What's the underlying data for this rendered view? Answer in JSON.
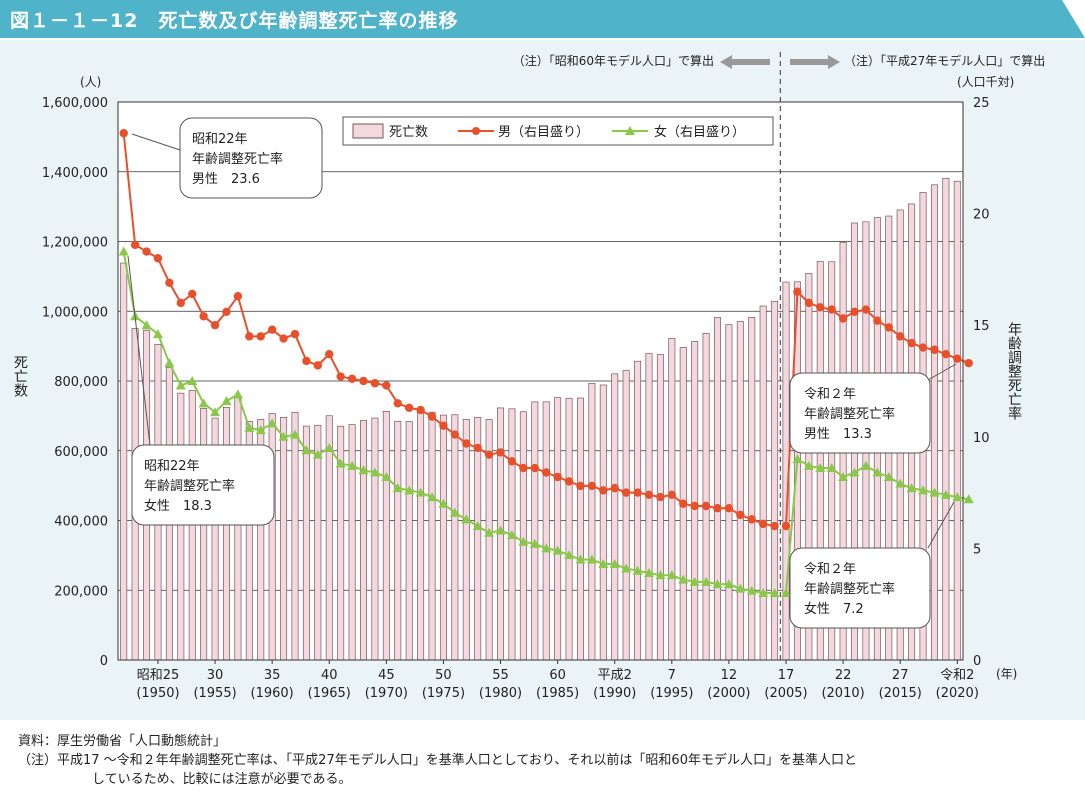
{
  "title": "図１－１－12　死亡数及び年齢調整死亡率の推移",
  "notes": {
    "source": "資料：厚生労働省「人口動態統計」",
    "note_line1": "（注）平成17 ～令和２年年齢調整死亡率は、「平成27年モデル人口」を基準人口としており、それ以前は「昭和60年モデル人口」を基準人口と",
    "note_line2": "しているため、比較には注意が必要である。"
  },
  "colors": {
    "title_bg": "#4fb3c9",
    "bar_fill": "#f3d9de",
    "bar_stroke": "#7a5560",
    "male": "#e8502b",
    "female": "#8ac84a"
  },
  "chart_data": {
    "type": "bar+line",
    "x": [
      1947,
      1948,
      1949,
      1950,
      1951,
      1952,
      1953,
      1954,
      1955,
      1956,
      1957,
      1958,
      1959,
      1960,
      1961,
      1962,
      1963,
      1964,
      1965,
      1966,
      1967,
      1968,
      1969,
      1970,
      1971,
      1972,
      1973,
      1974,
      1975,
      1976,
      1977,
      1978,
      1979,
      1980,
      1981,
      1982,
      1983,
      1984,
      1985,
      1986,
      1987,
      1988,
      1989,
      1990,
      1991,
      1992,
      1993,
      1994,
      1995,
      1996,
      1997,
      1998,
      1999,
      2000,
      2001,
      2002,
      2003,
      2004,
      2005,
      2006,
      2007,
      2008,
      2009,
      2010,
      2011,
      2012,
      2013,
      2014,
      2015,
      2016,
      2017,
      2018,
      2019,
      2020
    ],
    "x_tick_labels": [
      {
        "year": 1950,
        "era": "昭和25",
        "ad": "(1950)"
      },
      {
        "year": 1955,
        "era": "30",
        "ad": "(1955)"
      },
      {
        "year": 1960,
        "era": "35",
        "ad": "(1960)"
      },
      {
        "year": 1965,
        "era": "40",
        "ad": "(1965)"
      },
      {
        "year": 1970,
        "era": "45",
        "ad": "(1970)"
      },
      {
        "year": 1975,
        "era": "50",
        "ad": "(1975)"
      },
      {
        "year": 1980,
        "era": "55",
        "ad": "(1980)"
      },
      {
        "year": 1985,
        "era": "60",
        "ad": "(1985)"
      },
      {
        "year": 1990,
        "era": "平成2",
        "ad": "(1990)"
      },
      {
        "year": 1995,
        "era": "7",
        "ad": "(1995)"
      },
      {
        "year": 2000,
        "era": "12",
        "ad": "(2000)"
      },
      {
        "year": 2005,
        "era": "17",
        "ad": "(2005)"
      },
      {
        "year": 2010,
        "era": "22",
        "ad": "(2010)"
      },
      {
        "year": 2015,
        "era": "27",
        "ad": "(2015)"
      },
      {
        "year": 2020,
        "era": "令和2",
        "ad": "(2020)"
      }
    ],
    "x_unit": "(年)",
    "left_axis": {
      "label": "死亡数",
      "unit": "(人)",
      "min": 0,
      "max": 1600000,
      "ticks": [
        "0",
        "200,000",
        "400,000",
        "600,000",
        "800,000",
        "1,000,000",
        "1,200,000",
        "1,400,000",
        "1,600,000"
      ]
    },
    "right_axis": {
      "label": "年齢調整死亡率",
      "unit": "(人口千対)",
      "min": 0,
      "max": 25,
      "ticks": [
        "0",
        "5",
        "10",
        "15",
        "20",
        "25"
      ]
    },
    "deaths": {
      "name": "死亡数",
      "values": [
        1138238,
        950610,
        945444,
        904876,
        838998,
        765068,
        772547,
        721491,
        693523,
        724460,
        752445,
        684189,
        689959,
        706599,
        695644,
        710265,
        670770,
        673067,
        700438,
        670342,
        675006,
        686555,
        693787,
        712962,
        684521,
        683751,
        709416,
        710510,
        702275,
        703270,
        690074,
        695821,
        689664,
        722801,
        720262,
        711883,
        740038,
        740247,
        752283,
        750620,
        751172,
        793014,
        788594,
        820305,
        829797,
        856643,
        878532,
        875933,
        922139,
        896211,
        913402,
        936484,
        982031,
        961653,
        970331,
        982379,
        1014951,
        1028602,
        1083796,
        1084450,
        1108334,
        1142407,
        1141865,
        1197014,
        1253066,
        1256359,
        1268438,
        1273004,
        1290444,
        1307748,
        1340567,
        1362470,
        1381093,
        1372755
      ]
    },
    "male_rate": {
      "name": "男（右目盛り）",
      "values": [
        23.6,
        18.6,
        18.3,
        18.0,
        16.9,
        16.0,
        16.4,
        15.4,
        15.0,
        15.6,
        16.3,
        14.5,
        14.5,
        14.8,
        14.4,
        14.6,
        13.4,
        13.2,
        13.7,
        12.7,
        12.6,
        12.5,
        12.4,
        12.3,
        11.5,
        11.3,
        11.2,
        10.9,
        10.5,
        10.1,
        9.7,
        9.5,
        9.2,
        9.3,
        8.9,
        8.6,
        8.6,
        8.4,
        8.2,
        8.0,
        7.8,
        7.8,
        7.6,
        7.7,
        7.5,
        7.5,
        7.4,
        7.3,
        7.4,
        7.0,
        6.9,
        6.9,
        6.8,
        6.8,
        6.5,
        6.3,
        6.1,
        6.0,
        6.0,
        16.5,
        16.0,
        15.8,
        15.7,
        15.3,
        15.6,
        15.7,
        15.2,
        14.9,
        14.5,
        14.2,
        14.0,
        13.9,
        13.7,
        13.5,
        13.3
      ]
    },
    "female_rate": {
      "name": "女（右目盛り）",
      "values": [
        18.3,
        15.4,
        15.0,
        14.6,
        13.3,
        12.3,
        12.5,
        11.5,
        11.1,
        11.6,
        11.9,
        10.4,
        10.3,
        10.6,
        10.0,
        10.1,
        9.4,
        9.2,
        9.5,
        8.8,
        8.7,
        8.5,
        8.4,
        8.2,
        7.7,
        7.6,
        7.5,
        7.3,
        7.0,
        6.6,
        6.3,
        6.0,
        5.7,
        5.8,
        5.6,
        5.3,
        5.2,
        5.0,
        4.9,
        4.7,
        4.5,
        4.5,
        4.3,
        4.3,
        4.1,
        4.0,
        3.9,
        3.8,
        3.8,
        3.6,
        3.5,
        3.5,
        3.4,
        3.4,
        3.2,
        3.1,
        3.0,
        3.0,
        3.0,
        9.0,
        8.7,
        8.6,
        8.6,
        8.2,
        8.4,
        8.7,
        8.4,
        8.2,
        7.9,
        7.7,
        7.6,
        7.5,
        7.4,
        7.3,
        7.2
      ]
    },
    "legend": {
      "deaths": "死亡数",
      "male": "男（右目盛り）",
      "female": "女（右目盛り）",
      "placement": "top-center"
    },
    "period_notes": {
      "left": "（注）「昭和60年モデル人口」で算出",
      "right": "（注）「平成27年モデル人口」で算出"
    },
    "callouts": {
      "male_1947": {
        "line1": "昭和22年",
        "line2": "年齢調整死亡率",
        "line3": "男性　23.6"
      },
      "female_1947": {
        "line1": "昭和22年",
        "line2": "年齢調整死亡率",
        "line3": "女性　18.3"
      },
      "male_2020": {
        "line1": "令和２年",
        "line2": "年齢調整死亡率",
        "line3": "男性　13.3"
      },
      "female_2020": {
        "line1": "令和２年",
        "line2": "年齢調整死亡率",
        "line3": "女性　7.2"
      }
    },
    "grid": "horizontal"
  }
}
